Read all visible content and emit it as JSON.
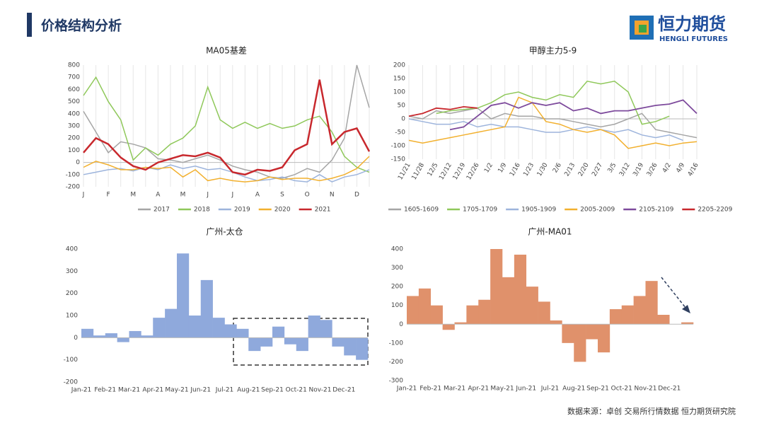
{
  "header": {
    "title": "价格结构分析",
    "logo": "恒力期货",
    "logo_sub": "HENGLI FUTURES"
  },
  "footer": {
    "source": "数据来源：卓创  交易所行情数据  恒力期货研究院"
  },
  "chart_data": [
    {
      "type": "line",
      "title": "MA05基差",
      "grid": "x",
      "categories": [
        "J",
        null,
        "F",
        null,
        "M",
        null,
        "A",
        null,
        "M",
        null,
        "J",
        null,
        "J",
        null,
        "A",
        null,
        "S",
        null,
        "O",
        null,
        "N",
        null,
        "D",
        null
      ],
      "ylim": [
        -200,
        800
      ],
      "yticks": [
        -200,
        -100,
        0,
        100,
        200,
        300,
        400,
        500,
        600,
        700,
        800
      ],
      "series": [
        {
          "name": "2017",
          "color": "#a5a5a5",
          "width": 1.5,
          "values": [
            420,
            250,
            80,
            170,
            150,
            120,
            30,
            20,
            0,
            30,
            60,
            20,
            -30,
            -60,
            -80,
            -120,
            -130,
            -100,
            -50,
            -80,
            20,
            200,
            800,
            450
          ]
        },
        {
          "name": "2018",
          "color": "#8fc85a",
          "width": 1.5,
          "values": [
            550,
            700,
            500,
            350,
            20,
            120,
            60,
            150,
            200,
            300,
            620,
            350,
            280,
            330,
            280,
            320,
            280,
            300,
            350,
            380,
            250,
            50,
            -40,
            -80
          ]
        },
        {
          "name": "2019",
          "color": "#9db4dc",
          "width": 1.5,
          "values": [
            -100,
            -80,
            -60,
            -50,
            -70,
            -40,
            -60,
            -20,
            -50,
            -30,
            -60,
            -50,
            -80,
            -120,
            -150,
            -140,
            -120,
            -150,
            -160,
            -100,
            -160,
            -120,
            -100,
            -60
          ]
        },
        {
          "name": "2020",
          "color": "#f2b02e",
          "width": 1.5,
          "values": [
            -40,
            10,
            -20,
            -60,
            -60,
            -40,
            -50,
            -40,
            -120,
            -60,
            -150,
            -130,
            -150,
            -160,
            -150,
            -120,
            -140,
            -130,
            -130,
            -150,
            -130,
            -100,
            -50,
            50
          ]
        },
        {
          "name": "2021",
          "color": "#c8282d",
          "width": 2.5,
          "values": [
            80,
            200,
            150,
            40,
            -30,
            -60,
            0,
            30,
            60,
            50,
            80,
            40,
            -80,
            -100,
            -60,
            -70,
            -40,
            100,
            150,
            680,
            150,
            250,
            280,
            90
          ]
        }
      ]
    },
    {
      "type": "line",
      "title": "甲醇主力5-9",
      "grid": "x",
      "rotate": true,
      "categories": [
        "11/21",
        "11/28",
        "12/5",
        "12/12",
        "12/19",
        "12/26",
        "1/2",
        "1/9",
        "1/16",
        "1/23",
        "1/30",
        "2/6",
        "2/13",
        "2/20",
        "2/27",
        "3/5",
        "3/12",
        "3/19",
        "3/26",
        "4/2",
        "4/9",
        "4/16"
      ],
      "ylim": [
        -150,
        200
      ],
      "yticks": [
        -150,
        -100,
        -50,
        0,
        50,
        100,
        150,
        200
      ],
      "series": [
        {
          "name": "1605-1609",
          "color": "#a5a5a5",
          "width": 1.5,
          "values": [
            10,
            0,
            30,
            20,
            30,
            40,
            0,
            20,
            10,
            10,
            0,
            0,
            -10,
            -20,
            -30,
            -20,
            0,
            20,
            -40,
            -50,
            -60,
            -70
          ]
        },
        {
          "name": "1705-1709",
          "color": "#8fc85a",
          "width": 1.5,
          "values": [
            null,
            null,
            20,
            30,
            35,
            40,
            60,
            90,
            100,
            80,
            70,
            90,
            80,
            140,
            130,
            140,
            100,
            -20,
            -10,
            10,
            null,
            null
          ]
        },
        {
          "name": "1905-1909",
          "color": "#9db4dc",
          "width": 1.5,
          "values": [
            0,
            -10,
            -20,
            -20,
            -10,
            -30,
            -20,
            -30,
            -30,
            -40,
            -50,
            -50,
            -40,
            -30,
            -40,
            -50,
            -40,
            -60,
            -70,
            -60,
            -80,
            null
          ]
        },
        {
          "name": "2005-2009",
          "color": "#f2b02e",
          "width": 1.5,
          "values": [
            -80,
            -90,
            -80,
            -70,
            -60,
            -50,
            -40,
            -30,
            80,
            60,
            -10,
            -20,
            -40,
            -50,
            -40,
            -60,
            -110,
            -100,
            -90,
            -100,
            -90,
            -85
          ]
        },
        {
          "name": "2105-2109",
          "color": "#7d4a9c",
          "width": 1.8,
          "values": [
            null,
            null,
            null,
            -40,
            -30,
            10,
            50,
            60,
            40,
            60,
            50,
            60,
            30,
            40,
            20,
            30,
            30,
            40,
            50,
            55,
            70,
            20
          ]
        },
        {
          "name": "2205-2209",
          "color": "#c8282d",
          "width": 1.8,
          "values": [
            10,
            20,
            40,
            35,
            45,
            40,
            null,
            null,
            null,
            null,
            null,
            null,
            null,
            null,
            null,
            null,
            null,
            null,
            null,
            null,
            null,
            null
          ]
        }
      ]
    },
    {
      "type": "bar",
      "title": "广州-太仓",
      "color": "#8fa9dc",
      "categories": [
        "Jan-21",
        null,
        "Feb-21",
        null,
        "Mar-21",
        null,
        "Apr-21",
        null,
        "May-21",
        null,
        "Jun-21",
        null,
        "Jul-21",
        null,
        "Aug-21",
        null,
        "Sep-21",
        null,
        "Oct-21",
        null,
        "Nov-21",
        null,
        "Dec-21",
        null
      ],
      "values": [
        40,
        10,
        20,
        -20,
        30,
        10,
        90,
        130,
        380,
        100,
        260,
        90,
        60,
        40,
        -60,
        -40,
        50,
        -30,
        -60,
        100,
        80,
        -40,
        -80,
        -100
      ],
      "ylim": [
        -200,
        400
      ],
      "yticks": [
        -200,
        -100,
        0,
        100,
        200,
        300,
        400
      ]
    },
    {
      "type": "bar",
      "title": "广州-MA01",
      "color": "#e0916b",
      "categories": [
        "Jan-21",
        null,
        "Feb-21",
        null,
        "Mar-21",
        null,
        "Apr-21",
        null,
        "May-21",
        null,
        "Jun-21",
        null,
        "Jul-21",
        null,
        "Aug-21",
        null,
        "Sep-21",
        null,
        "Oct-21",
        null,
        "Nov-21",
        null,
        "Dec-21",
        null
      ],
      "values": [
        150,
        190,
        100,
        -30,
        10,
        100,
        130,
        400,
        250,
        370,
        200,
        120,
        20,
        -100,
        -200,
        -80,
        -150,
        80,
        100,
        150,
        230,
        50,
        0,
        10
      ],
      "ylim": [
        -300,
        400
      ],
      "yticks": [
        -300,
        -200,
        -100,
        0,
        100,
        200,
        300,
        400
      ]
    }
  ]
}
